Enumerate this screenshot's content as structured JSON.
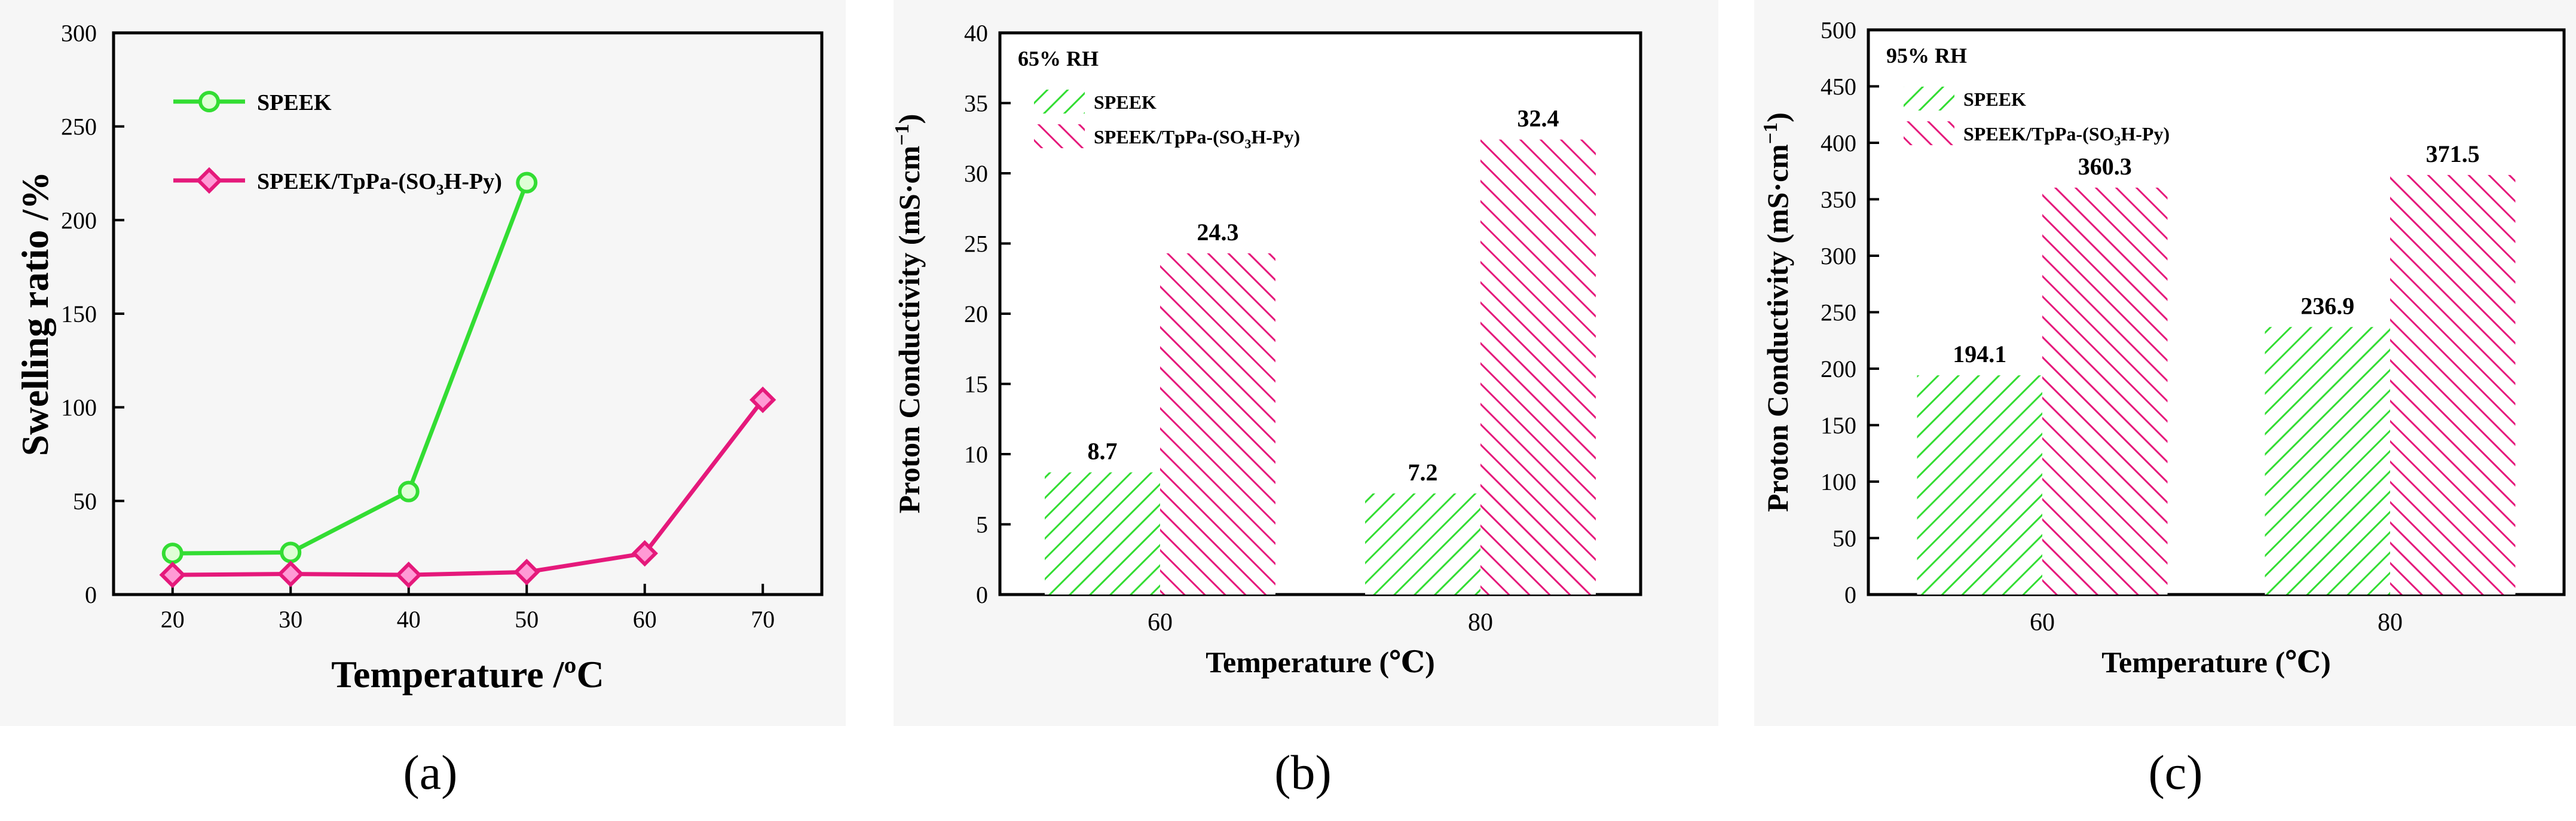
{
  "colors": {
    "green": "#33dd33",
    "pink": "#e5197b",
    "pink_fill": "#ff9ad5",
    "green_fill": "#dfffd6",
    "axis": "#000000"
  },
  "chart_data": [
    {
      "type": "line",
      "panel_label": "(a)",
      "xlabel": "Temperature /ºC",
      "ylabel": "Swelling ratio /%",
      "xlim": [
        15,
        75
      ],
      "ylim": [
        0,
        300
      ],
      "x_ticks": [
        20,
        30,
        40,
        50,
        60,
        70
      ],
      "y_ticks": [
        0,
        50,
        100,
        150,
        200,
        250,
        300
      ],
      "series": [
        {
          "name": "SPEEK",
          "x": [
            20,
            30,
            40,
            50
          ],
          "values": [
            22,
            22.5,
            55,
            220
          ],
          "marker": "circle"
        },
        {
          "name": "SPEEK/TpPa-(SO3H-Py)",
          "x": [
            20,
            30,
            40,
            50,
            60,
            70
          ],
          "values": [
            10.5,
            11,
            10.5,
            12,
            22,
            104
          ],
          "marker": "diamond"
        }
      ],
      "legend": "top-left"
    },
    {
      "type": "bar",
      "panel_label": "(b)",
      "annotation": "65% RH",
      "xlabel": "Temperature (℃)",
      "ylabel": "Proton Conductivity (mS·cm",
      "ylabel_sup": "−1",
      "ylabel_end": ")",
      "categories": [
        "60",
        "80"
      ],
      "ylim": [
        0,
        40
      ],
      "y_ticks": [
        0,
        5,
        10,
        15,
        20,
        25,
        30,
        35,
        40
      ],
      "series": [
        {
          "name": "SPEEK",
          "values": [
            8.7,
            7.2
          ],
          "labels": [
            "8.7",
            "7.2"
          ]
        },
        {
          "name": "SPEEK/TpPa-(SO3H-Py)",
          "values": [
            24.3,
            32.4
          ],
          "labels": [
            "24.3",
            "32.4"
          ]
        }
      ],
      "legend": "top-left"
    },
    {
      "type": "bar",
      "panel_label": "(c)",
      "annotation": "95% RH",
      "xlabel": "Temperature (℃)",
      "ylabel": "Proton Conductivity (mS·cm",
      "ylabel_sup": "−1",
      "ylabel_end": ")",
      "categories": [
        "60",
        "80"
      ],
      "ylim": [
        0,
        500
      ],
      "y_ticks": [
        0,
        50,
        100,
        150,
        200,
        250,
        300,
        350,
        400,
        450,
        500
      ],
      "series": [
        {
          "name": "SPEEK",
          "values": [
            194.1,
            236.9
          ],
          "labels": [
            "194.1",
            "236.9"
          ]
        },
        {
          "name": "SPEEK/TpPa-(SO3H-Py)",
          "values": [
            360.3,
            371.5
          ],
          "labels": [
            "360.3",
            "371.5"
          ]
        }
      ],
      "legend": "top-left"
    }
  ]
}
